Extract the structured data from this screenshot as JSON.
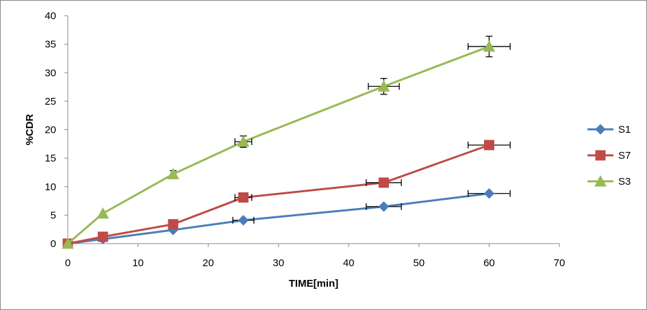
{
  "chart_data": {
    "type": "line",
    "title": "",
    "xlabel": "TIME[min]",
    "ylabel": "%CDR",
    "xlim": [
      0,
      70
    ],
    "ylim": [
      0,
      40
    ],
    "xticks": [
      0,
      10,
      20,
      30,
      40,
      50,
      60,
      70
    ],
    "yticks": [
      0,
      5,
      10,
      15,
      20,
      25,
      30,
      35,
      40
    ],
    "grid": false,
    "legend_position": "right",
    "series": [
      {
        "name": "S1",
        "color": "#4a7ebb",
        "marker": "diamond",
        "x": [
          0,
          5,
          15,
          25,
          45,
          60
        ],
        "y": [
          0,
          0.8,
          2.4,
          4.1,
          6.5,
          8.8
        ],
        "xerr": [
          0,
          0,
          0,
          1.5,
          2.5,
          3
        ]
      },
      {
        "name": "S7",
        "color": "#be4b48",
        "marker": "square",
        "x": [
          0,
          5,
          15,
          25,
          45,
          60
        ],
        "y": [
          0,
          1.2,
          3.4,
          8.1,
          10.7,
          17.3
        ],
        "xerr": [
          0,
          0,
          0,
          1.2,
          2.5,
          3
        ]
      },
      {
        "name": "S3",
        "color": "#98b954",
        "marker": "triangle",
        "x": [
          0,
          5,
          15,
          25,
          45,
          60
        ],
        "y": [
          0,
          5.3,
          12.2,
          17.9,
          27.6,
          34.6
        ],
        "xerr": [
          0,
          0,
          0,
          1.2,
          2.2,
          3
        ],
        "yerr": [
          0,
          0,
          0.6,
          1.0,
          1.4,
          1.8
        ]
      }
    ]
  }
}
